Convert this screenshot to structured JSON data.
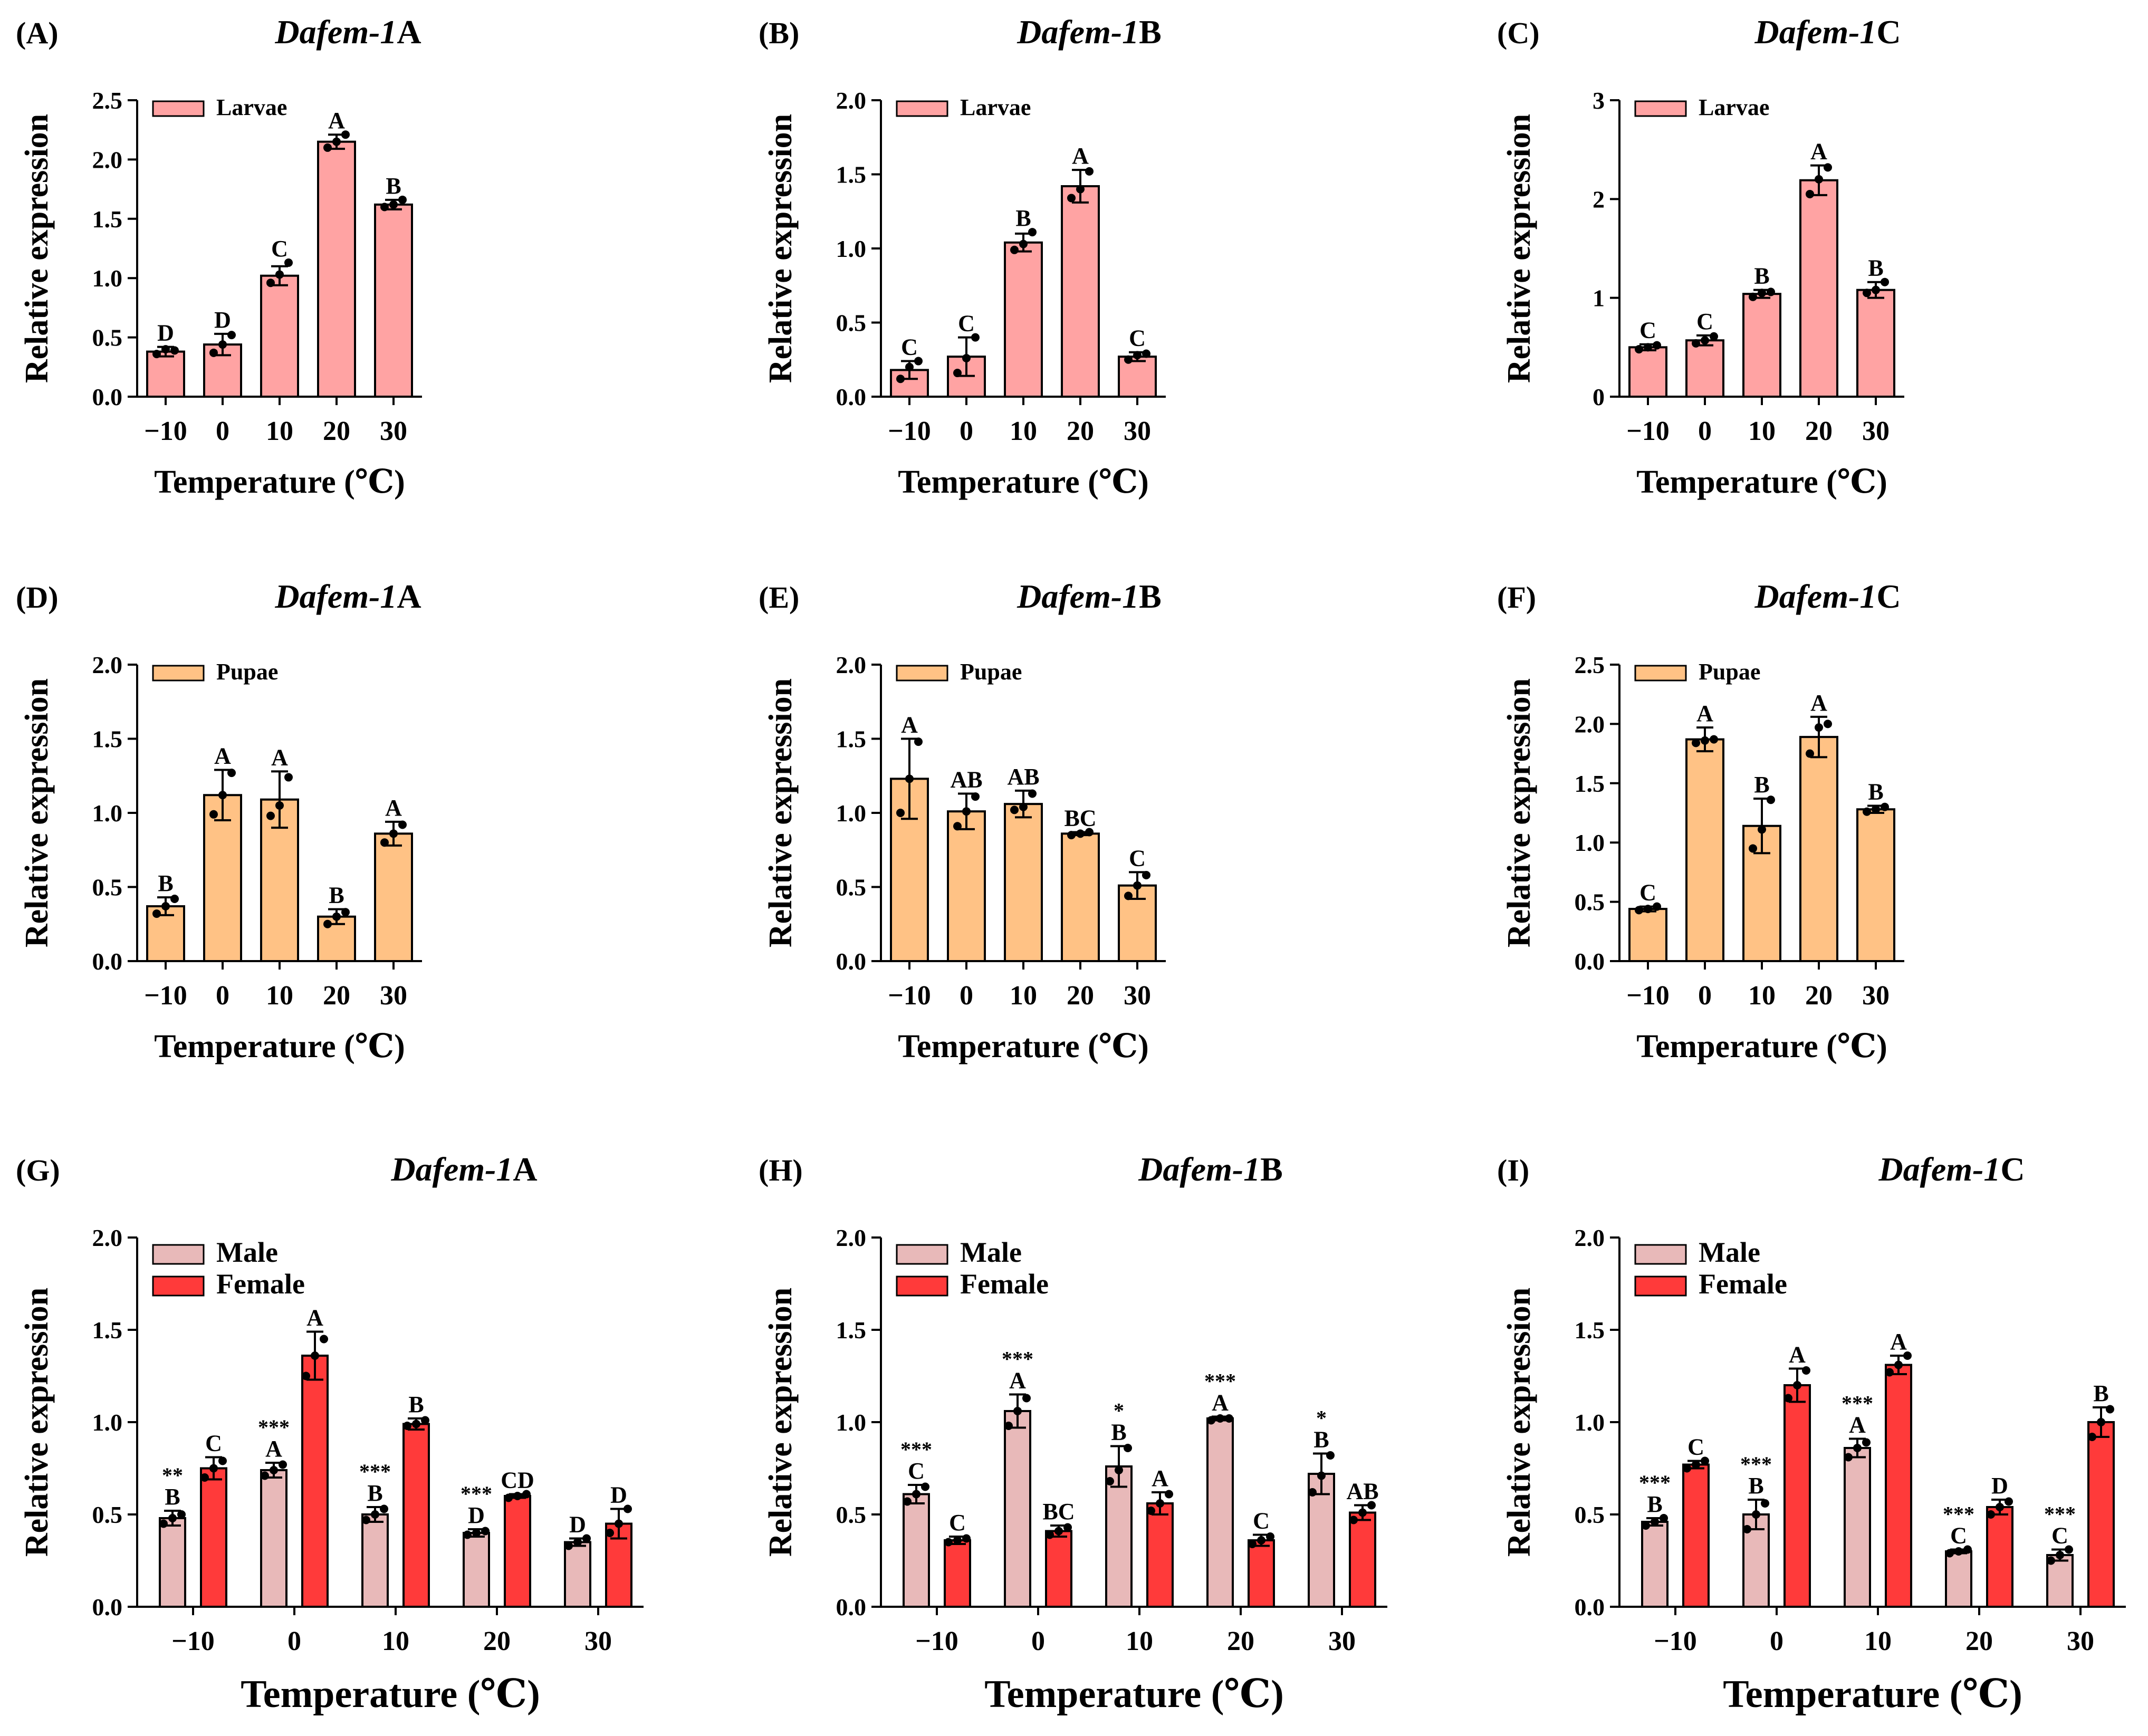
{
  "figure": {
    "background": "#ffffff",
    "colors": {
      "larvae": "#FFA3A3",
      "pupae": "#FFC285",
      "male": "#E8B9B9",
      "female": "#FF3A3A",
      "stroke": "#000000"
    }
  },
  "chart_data": [
    {
      "id": "A",
      "panel_label": "(A)",
      "title_italic": "Dafem-1",
      "title_suffix": "A",
      "type": "bar",
      "stage": "larvae",
      "categories": [
        "−10",
        "0",
        "10",
        "20",
        "30"
      ],
      "series": [
        {
          "name": "Larvae",
          "values": [
            0.38,
            0.44,
            1.02,
            2.15,
            1.62
          ],
          "err": [
            0.04,
            0.09,
            0.08,
            0.06,
            0.04
          ],
          "points": [
            [
              0.36,
              0.4,
              0.39
            ],
            [
              0.37,
              0.44,
              0.52
            ],
            [
              0.96,
              1.03,
              1.13
            ],
            [
              2.1,
              2.15,
              2.21
            ],
            [
              1.6,
              1.62,
              1.66
            ]
          ],
          "letters": [
            "D",
            "D",
            "C",
            "A",
            "B"
          ]
        }
      ],
      "ylabel": "Relative expression",
      "xlabel": "Temperature (℃)",
      "ylim": [
        0,
        2.5
      ],
      "yticks": [
        "0.0",
        "0.5",
        "1.0",
        "1.5",
        "2.0",
        "2.5"
      ],
      "ytick_values": [
        0,
        0.5,
        1.0,
        1.5,
        2.0,
        2.5
      ],
      "grid": false,
      "legend": "top-left"
    },
    {
      "id": "B",
      "panel_label": "(B)",
      "title_italic": "Dafem-1",
      "title_suffix": "B",
      "type": "bar",
      "stage": "larvae",
      "categories": [
        "−10",
        "0",
        "10",
        "20",
        "30"
      ],
      "series": [
        {
          "name": "Larvae",
          "values": [
            0.18,
            0.27,
            1.04,
            1.42,
            0.27
          ],
          "err": [
            0.06,
            0.13,
            0.06,
            0.11,
            0.03
          ],
          "points": [
            [
              0.12,
              0.2,
              0.24
            ],
            [
              0.16,
              0.26,
              0.4
            ],
            [
              0.99,
              1.03,
              1.11
            ],
            [
              1.34,
              1.4,
              1.52
            ],
            [
              0.25,
              0.28,
              0.29
            ]
          ],
          "letters": [
            "C",
            "C",
            "B",
            "A",
            "C"
          ]
        }
      ],
      "ylabel": "Relative expression",
      "xlabel": "Temperature (℃)",
      "ylim": [
        0,
        2.0
      ],
      "yticks": [
        "0.0",
        "0.5",
        "1.0",
        "1.5",
        "2.0"
      ],
      "ytick_values": [
        0,
        0.5,
        1.0,
        1.5,
        2.0
      ],
      "grid": false,
      "legend": "top-left"
    },
    {
      "id": "C",
      "panel_label": "(C)",
      "title_italic": "Dafem-1",
      "title_suffix": "C",
      "type": "bar",
      "stage": "larvae",
      "categories": [
        "−10",
        "0",
        "10",
        "20",
        "30"
      ],
      "series": [
        {
          "name": "Larvae",
          "values": [
            0.5,
            0.57,
            1.04,
            2.19,
            1.08
          ],
          "err": [
            0.03,
            0.05,
            0.04,
            0.15,
            0.08
          ],
          "points": [
            [
              0.48,
              0.5,
              0.52
            ],
            [
              0.54,
              0.57,
              0.61
            ],
            [
              1.01,
              1.05,
              1.06
            ],
            [
              2.05,
              2.2,
              2.32
            ],
            [
              1.05,
              1.08,
              1.16
            ]
          ],
          "letters": [
            "C",
            "C",
            "B",
            "A",
            "B"
          ]
        }
      ],
      "ylabel": "Relative expression",
      "xlabel": "Temperature (℃)",
      "ylim": [
        0,
        3
      ],
      "yticks": [
        "0",
        "1",
        "2",
        "3"
      ],
      "ytick_values": [
        0,
        1,
        2,
        3
      ],
      "grid": false,
      "legend": "top-left"
    },
    {
      "id": "D",
      "panel_label": "(D)",
      "title_italic": "Dafem-1",
      "title_suffix": "A",
      "type": "bar",
      "stage": "pupae",
      "categories": [
        "−10",
        "0",
        "10",
        "20",
        "30"
      ],
      "series": [
        {
          "name": "Pupae",
          "values": [
            0.37,
            1.12,
            1.09,
            0.3,
            0.86
          ],
          "err": [
            0.06,
            0.17,
            0.19,
            0.05,
            0.08
          ],
          "points": [
            [
              0.32,
              0.37,
              0.42
            ],
            [
              0.99,
              1.12,
              1.27
            ],
            [
              0.98,
              1.05,
              1.24
            ],
            [
              0.25,
              0.3,
              0.33
            ],
            [
              0.8,
              0.86,
              0.92
            ]
          ],
          "letters": [
            "B",
            "A",
            "A",
            "B",
            "A"
          ]
        }
      ],
      "ylabel": "Relative expression",
      "xlabel": "Temperature (℃)",
      "ylim": [
        0,
        2.0
      ],
      "yticks": [
        "0.0",
        "0.5",
        "1.0",
        "1.5",
        "2.0"
      ],
      "ytick_values": [
        0,
        0.5,
        1.0,
        1.5,
        2.0
      ],
      "grid": false,
      "legend": "top-left"
    },
    {
      "id": "E",
      "panel_label": "(E)",
      "title_italic": "Dafem-1",
      "title_suffix": "B",
      "type": "bar",
      "stage": "pupae",
      "categories": [
        "−10",
        "0",
        "10",
        "20",
        "30"
      ],
      "series": [
        {
          "name": "Pupae",
          "values": [
            1.23,
            1.01,
            1.06,
            0.86,
            0.51
          ],
          "err": [
            0.27,
            0.12,
            0.09,
            0.01,
            0.09
          ],
          "points": [
            [
              1.0,
              1.23,
              1.48
            ],
            [
              0.91,
              1.01,
              1.11
            ],
            [
              1.02,
              1.04,
              1.13
            ],
            [
              0.85,
              0.86,
              0.87
            ],
            [
              0.44,
              0.51,
              0.58
            ]
          ],
          "letters": [
            "A",
            "AB",
            "AB",
            "BC",
            "C"
          ]
        }
      ],
      "ylabel": "Relative expression",
      "xlabel": "Temperature (℃)",
      "ylim": [
        0,
        2.0
      ],
      "yticks": [
        "0.0",
        "0.5",
        "1.0",
        "1.5",
        "2.0"
      ],
      "ytick_values": [
        0,
        0.5,
        1.0,
        1.5,
        2.0
      ],
      "grid": false,
      "legend": "top-left"
    },
    {
      "id": "F",
      "panel_label": "(F)",
      "title_italic": "Dafem-1",
      "title_suffix": "C",
      "type": "bar",
      "stage": "pupae",
      "categories": [
        "−10",
        "0",
        "10",
        "20",
        "30"
      ],
      "series": [
        {
          "name": "Pupae",
          "values": [
            0.44,
            1.87,
            1.14,
            1.89,
            1.28
          ],
          "err": [
            0.02,
            0.1,
            0.23,
            0.17,
            0.03
          ],
          "points": [
            [
              0.43,
              0.44,
              0.46
            ],
            [
              1.84,
              1.86,
              1.87
            ],
            [
              0.95,
              1.11,
              1.36
            ],
            [
              1.75,
              1.97,
              2.0
            ],
            [
              1.26,
              1.28,
              1.3
            ]
          ],
          "letters": [
            "C",
            "A",
            "B",
            "A",
            "B"
          ]
        }
      ],
      "ylabel": "Relative expression",
      "xlabel": "Temperature (℃)",
      "ylim": [
        0,
        2.5
      ],
      "yticks": [
        "0.0",
        "0.5",
        "1.0",
        "1.5",
        "2.0",
        "2.5"
      ],
      "ytick_values": [
        0,
        0.5,
        1.0,
        1.5,
        2.0,
        2.5
      ],
      "grid": false,
      "legend": "top-left"
    },
    {
      "id": "G",
      "panel_label": "(G)",
      "title_italic": "Dafem-1",
      "title_suffix": "A",
      "type": "bar",
      "stage": "adult",
      "categories": [
        "−10",
        "0",
        "10",
        "20",
        "30"
      ],
      "series": [
        {
          "name": "Male",
          "values": [
            0.48,
            0.74,
            0.5,
            0.4,
            0.35
          ],
          "err": [
            0.04,
            0.04,
            0.04,
            0.02,
            0.02
          ],
          "points": [
            [
              0.45,
              0.48,
              0.5
            ],
            [
              0.71,
              0.74,
              0.77
            ],
            [
              0.47,
              0.5,
              0.53
            ],
            [
              0.39,
              0.4,
              0.41
            ],
            [
              0.33,
              0.35,
              0.37
            ]
          ],
          "letters": [
            "B",
            "A",
            "B",
            "D",
            "D"
          ],
          "stars": [
            "**",
            "***",
            "***",
            "***",
            ""
          ]
        },
        {
          "name": "Female",
          "values": [
            0.75,
            1.36,
            0.99,
            0.6,
            0.45
          ],
          "err": [
            0.06,
            0.13,
            0.03,
            0.01,
            0.08
          ],
          "points": [
            [
              0.7,
              0.75,
              0.79
            ],
            [
              1.25,
              1.36,
              1.45
            ],
            [
              0.98,
              0.99,
              1.01
            ],
            [
              0.59,
              0.6,
              0.61
            ],
            [
              0.4,
              0.45,
              0.53
            ]
          ],
          "letters": [
            "C",
            "A",
            "B",
            "CD",
            "D"
          ]
        }
      ],
      "ylabel": "Relative expression",
      "xlabel": "Temperature (℃)",
      "ylim": [
        0,
        2.0
      ],
      "yticks": [
        "0.0",
        "0.5",
        "1.0",
        "1.5",
        "2.0"
      ],
      "ytick_values": [
        0,
        0.5,
        1.0,
        1.5,
        2.0
      ],
      "grid": false,
      "legend": "top-left"
    },
    {
      "id": "H",
      "panel_label": "(H)",
      "title_italic": "Dafem-1",
      "title_suffix": "B",
      "type": "bar",
      "stage": "adult",
      "categories": [
        "−10",
        "0",
        "10",
        "20",
        "30"
      ],
      "series": [
        {
          "name": "Male",
          "values": [
            0.61,
            1.06,
            0.76,
            1.02,
            0.72
          ],
          "err": [
            0.05,
            0.09,
            0.11,
            0.01,
            0.11
          ],
          "points": [
            [
              0.57,
              0.61,
              0.65
            ],
            [
              0.98,
              1.06,
              1.13
            ],
            [
              0.68,
              0.74,
              0.86
            ],
            [
              1.01,
              1.02,
              1.02
            ],
            [
              0.62,
              0.71,
              0.82
            ]
          ],
          "letters": [
            "C",
            "A",
            "B",
            "A",
            "B"
          ],
          "stars": [
            "***",
            "***",
            "*",
            "***",
            "*"
          ]
        },
        {
          "name": "Female",
          "values": [
            0.36,
            0.41,
            0.56,
            0.36,
            0.51
          ],
          "err": [
            0.02,
            0.03,
            0.06,
            0.03,
            0.04
          ],
          "points": [
            [
              0.35,
              0.36,
              0.37
            ],
            [
              0.39,
              0.41,
              0.43
            ],
            [
              0.52,
              0.56,
              0.61
            ],
            [
              0.34,
              0.36,
              0.38
            ],
            [
              0.47,
              0.51,
              0.55
            ]
          ],
          "letters": [
            "C",
            "BC",
            "A",
            "C",
            "AB"
          ]
        }
      ],
      "ylabel": "Relative expression",
      "xlabel": "Temperature (℃)",
      "ylim": [
        0,
        2.0
      ],
      "yticks": [
        "0.0",
        "0.5",
        "1.0",
        "1.5",
        "2.0"
      ],
      "ytick_values": [
        0,
        0.5,
        1.0,
        1.5,
        2.0
      ],
      "grid": false,
      "legend": "top-left"
    },
    {
      "id": "I",
      "panel_label": "(I)",
      "title_italic": "Dafem-1",
      "title_suffix": "C",
      "type": "bar",
      "stage": "adult",
      "categories": [
        "−10",
        "0",
        "10",
        "20",
        "30"
      ],
      "series": [
        {
          "name": "Male",
          "values": [
            0.46,
            0.5,
            0.86,
            0.3,
            0.28
          ],
          "err": [
            0.02,
            0.08,
            0.05,
            0.01,
            0.03
          ],
          "points": [
            [
              0.44,
              0.46,
              0.48
            ],
            [
              0.42,
              0.5,
              0.56
            ],
            [
              0.81,
              0.86,
              0.89
            ],
            [
              0.29,
              0.3,
              0.31
            ],
            [
              0.25,
              0.28,
              0.31
            ]
          ],
          "letters": [
            "B",
            "B",
            "A",
            "C",
            "C"
          ],
          "stars": [
            "***",
            "***",
            "***",
            "***",
            "***"
          ]
        },
        {
          "name": "Female",
          "values": [
            0.77,
            1.2,
            1.31,
            0.54,
            1.0
          ],
          "err": [
            0.02,
            0.09,
            0.05,
            0.04,
            0.08
          ],
          "points": [
            [
              0.75,
              0.77,
              0.79
            ],
            [
              1.13,
              1.2,
              1.28
            ],
            [
              1.27,
              1.31,
              1.36
            ],
            [
              0.5,
              0.54,
              0.57
            ],
            [
              0.92,
              1.0,
              1.07
            ]
          ],
          "letters": [
            "C",
            "A",
            "A",
            "D",
            "B"
          ]
        }
      ],
      "ylabel": "Relative expression",
      "xlabel": "Temperature (℃)",
      "ylim": [
        0,
        2.0
      ],
      "yticks": [
        "0.0",
        "0.5",
        "1.0",
        "1.5",
        "2.0"
      ],
      "ytick_values": [
        0,
        0.5,
        1.0,
        1.5,
        2.0
      ],
      "grid": false,
      "legend": "top-left"
    }
  ]
}
